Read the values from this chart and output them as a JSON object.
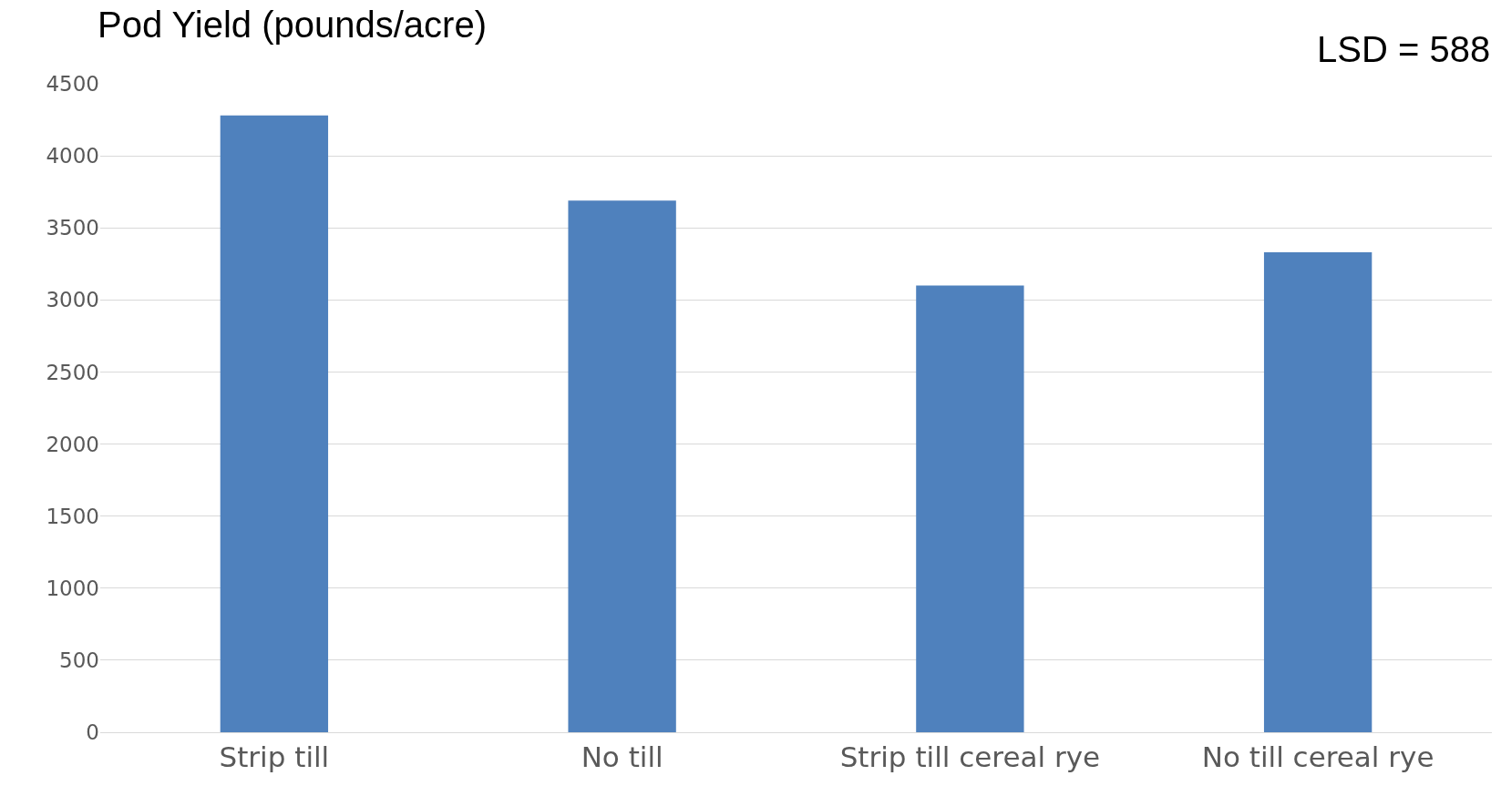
{
  "chart_data": {
    "type": "bar",
    "title": "Pod Yield (pounds/acre)",
    "annotations": [
      "LSD = 588"
    ],
    "categories": [
      "Strip till",
      "No till",
      "Strip till cereal rye",
      "No till cereal rye"
    ],
    "values": [
      4280,
      3690,
      3100,
      3330
    ],
    "color": "#4f81bd",
    "ylim": [
      0,
      4500
    ],
    "yticks": [
      0,
      500,
      1000,
      1500,
      2000,
      2500,
      3000,
      3500,
      4000,
      4500
    ],
    "grid": "y",
    "legend": false
  }
}
